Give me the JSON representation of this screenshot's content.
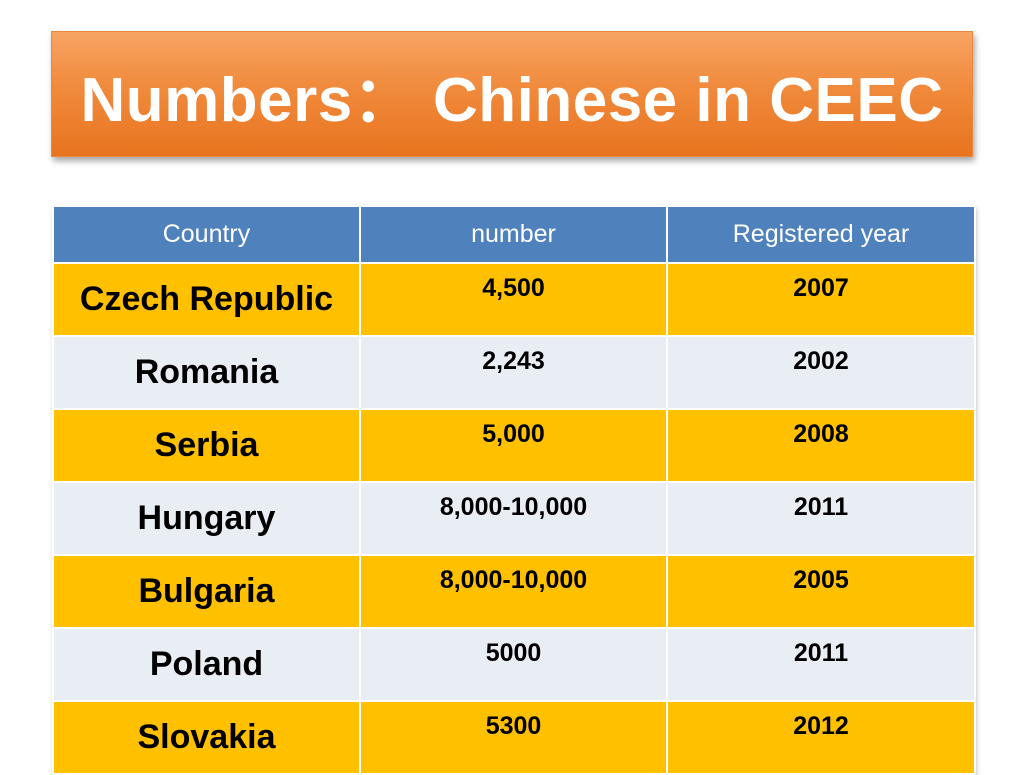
{
  "title": "Numbers： Chinese in CEEC",
  "table": {
    "headers": [
      "Country",
      "number",
      "Registered year"
    ],
    "rows": [
      {
        "country": "Czech Republic",
        "number": "4,500",
        "year": "2007"
      },
      {
        "country": "Romania",
        "number": "2,243",
        "year": "2002"
      },
      {
        "country": "Serbia",
        "number": "5,000",
        "year": "2008"
      },
      {
        "country": "Hungary",
        "number": "8,000-10,000",
        "year": "2011"
      },
      {
        "country": "Bulgaria",
        "number": "8,000-10,000",
        "year": "2005"
      },
      {
        "country": "Poland",
        "number": "5000",
        "year": "2011"
      },
      {
        "country": "Slovakia",
        "number": "5300",
        "year": "2012"
      }
    ]
  },
  "colors": {
    "title_banner": "#f08a3c",
    "header": "#4f81bd",
    "row_accent": "#ffc000",
    "row_light": "#e9edf4"
  }
}
